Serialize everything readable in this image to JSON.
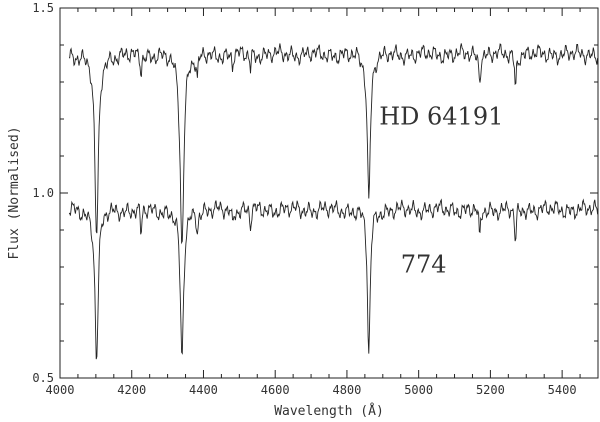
{
  "chart_data": {
    "type": "line",
    "xlabel": "Wavelength (Å)",
    "ylabel": "Flux (Normalised)",
    "xlim": [
      4000,
      5500
    ],
    "ylim": [
      0.5,
      1.5
    ],
    "x_ticks": [
      4000,
      4200,
      4400,
      4600,
      4800,
      5000,
      5200,
      5400
    ],
    "x_tick_labels": [
      "4000",
      "4200",
      "4400",
      "4600",
      "4800",
      "5000",
      "5200",
      "5400"
    ],
    "y_ticks": [
      0.5,
      1.0,
      1.5
    ],
    "y_tick_labels": [
      "0.5",
      "1.0",
      "1.5"
    ],
    "grid": false,
    "line_color": "#222222",
    "series": [
      {
        "name": "HD 64191",
        "continuum": 1.375,
        "x_range": [
          4025,
          5500
        ],
        "lines": [
          {
            "center": 4102,
            "depth": 0.5,
            "width": 12
          },
          {
            "center": 4340,
            "depth": 0.52,
            "width": 12
          },
          {
            "center": 4861,
            "depth": 0.4,
            "width": 10
          },
          {
            "center": 4226,
            "depth": 0.05,
            "width": 4
          },
          {
            "center": 4383,
            "depth": 0.06,
            "width": 5
          },
          {
            "center": 4481,
            "depth": 0.03,
            "width": 4
          },
          {
            "center": 4531,
            "depth": 0.04,
            "width": 4
          },
          {
            "center": 5170,
            "depth": 0.07,
            "width": 5
          },
          {
            "center": 5270,
            "depth": 0.09,
            "width": 5
          }
        ],
        "annotation": {
          "text": "HD 64191",
          "x": 4890,
          "y": 1.185
        }
      },
      {
        "name": "774",
        "continuum": 0.955,
        "x_range": [
          4025,
          5500
        ],
        "lines": [
          {
            "center": 4102,
            "depth": 0.4,
            "width": 11
          },
          {
            "center": 4340,
            "depth": 0.41,
            "width": 11
          },
          {
            "center": 4861,
            "depth": 0.4,
            "width": 9
          },
          {
            "center": 4226,
            "depth": 0.08,
            "width": 4
          },
          {
            "center": 4383,
            "depth": 0.05,
            "width": 5
          },
          {
            "center": 4481,
            "depth": 0.04,
            "width": 4
          },
          {
            "center": 4531,
            "depth": 0.05,
            "width": 4
          },
          {
            "center": 5170,
            "depth": 0.09,
            "width": 5
          },
          {
            "center": 5270,
            "depth": 0.1,
            "width": 5
          }
        ],
        "annotation": {
          "text": "774",
          "x": 4950,
          "y": 0.785
        }
      }
    ]
  }
}
